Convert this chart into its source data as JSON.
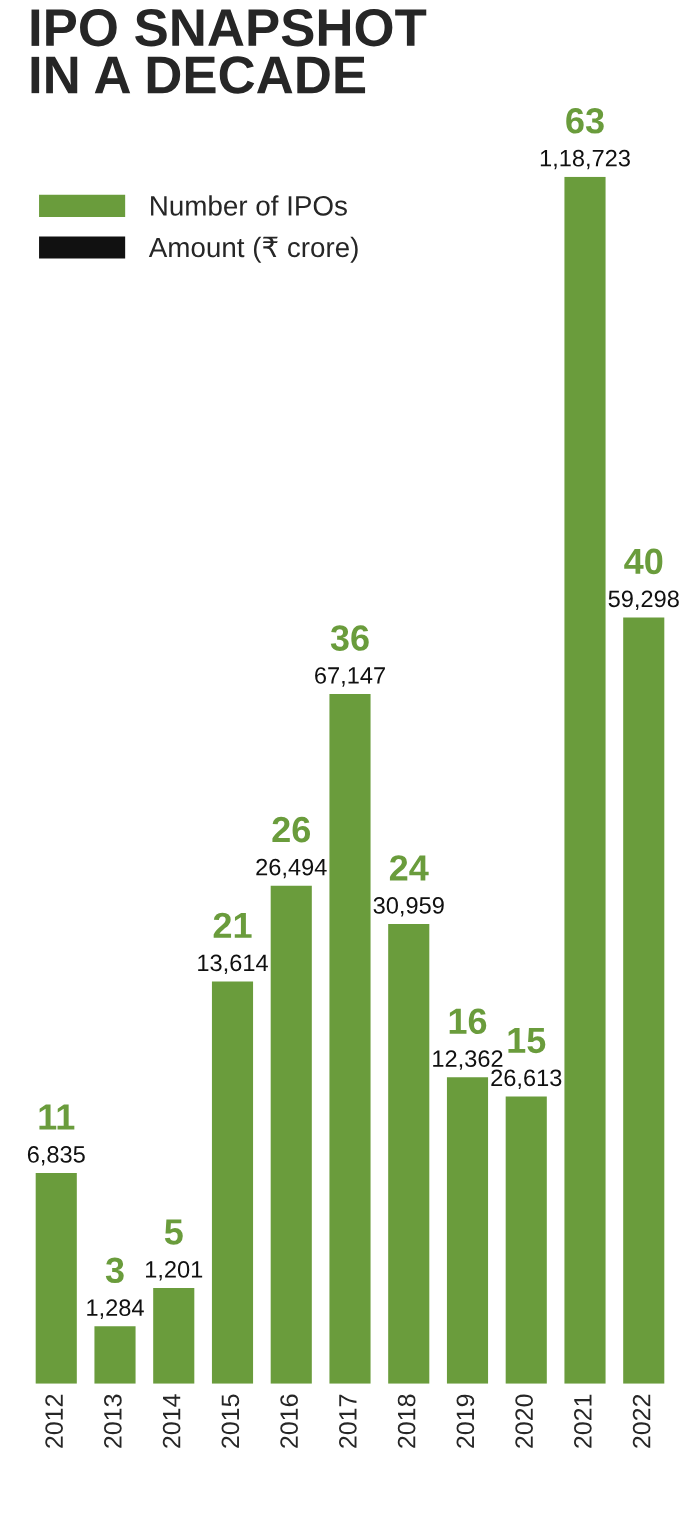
{
  "chart_data": {
    "type": "bar",
    "title": "IPO SNAPSHOT\nIN A DECADE",
    "categories": [
      "2012",
      "2013",
      "2014",
      "2015",
      "2016",
      "2017",
      "2018",
      "2019",
      "2020",
      "2021",
      "2022"
    ],
    "series": [
      {
        "name": "Number of IPOs",
        "color": "#6a9c3c",
        "values": [
          11,
          3,
          5,
          21,
          26,
          36,
          24,
          16,
          15,
          63,
          40
        ]
      }
    ],
    "annotations": [
      "Amount (₹ crore)",
      {
        "text": "6,835",
        "x": "2012",
        "y": 11
      },
      {
        "text": "1,284",
        "x": "2013",
        "y": 3
      },
      {
        "text": "1,201",
        "x": "2014",
        "y": 5
      },
      {
        "text": "13,614",
        "x": "2015",
        "y": 21
      },
      {
        "text": "26,494",
        "x": "2016",
        "y": 26
      },
      {
        "text": "67,147",
        "x": "2017",
        "y": 36
      },
      {
        "text": "30,959",
        "x": "2018",
        "y": 24
      },
      {
        "text": "12,362",
        "x": "2019",
        "y": 16
      },
      {
        "text": "26,613",
        "x": "2020",
        "y": 15
      },
      {
        "text": "1,18,723",
        "x": "2021",
        "y": 63
      },
      {
        "text": "59,298",
        "x": "2022",
        "y": 40
      }
    ],
    "data_labels": true,
    "legend": "top left",
    "tick_labels": "x",
    "grid": false
  }
}
